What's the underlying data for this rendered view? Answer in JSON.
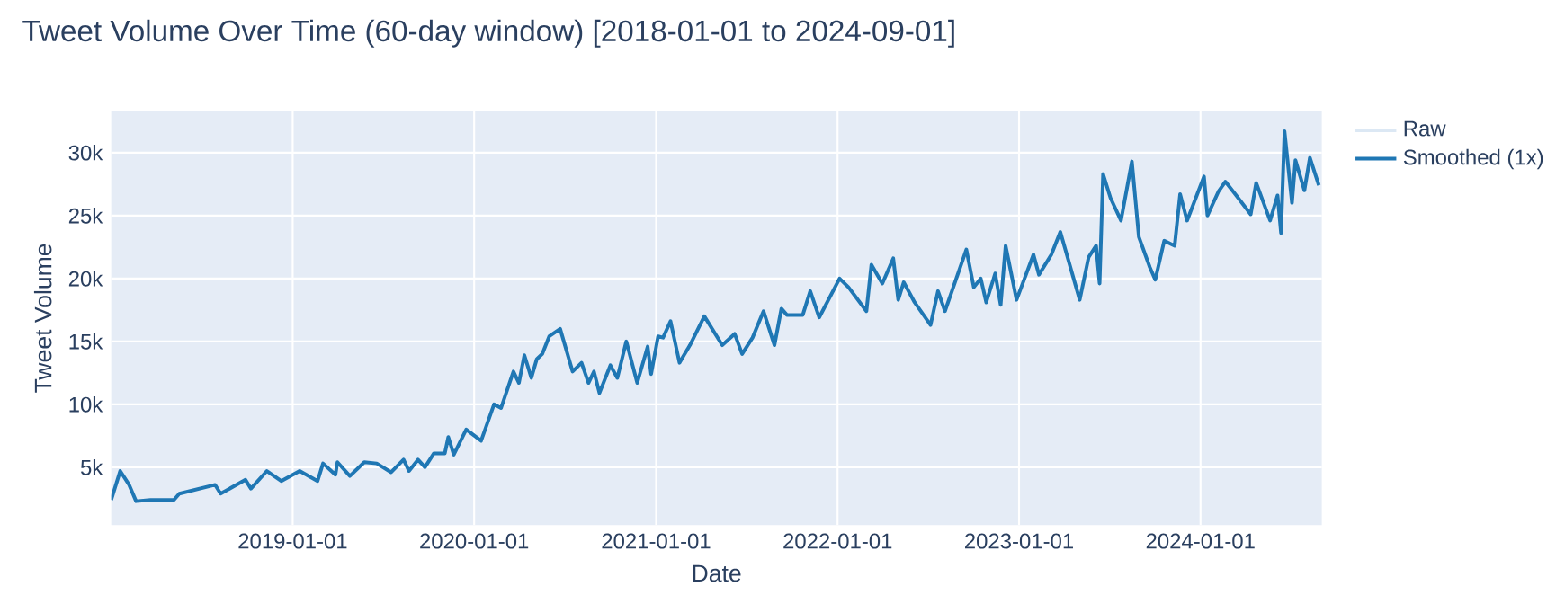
{
  "chart_data": {
    "type": "line",
    "title": "Tweet Volume Over Time (60-day window) [2018-01-01 to 2024-09-01]",
    "xlabel": "Date",
    "ylabel": "Tweet Volume",
    "xlim": [
      "2018-01-01",
      "2024-09-01"
    ],
    "xticks": [
      "2019-01-01",
      "2020-01-01",
      "2021-01-01",
      "2022-01-01",
      "2023-01-01",
      "2024-01-01"
    ],
    "ylim": [
      400,
      33300
    ],
    "yticks": [
      {
        "value": 5000,
        "label": "5k"
      },
      {
        "value": 10000,
        "label": "10k"
      },
      {
        "value": 15000,
        "label": "15k"
      },
      {
        "value": 20000,
        "label": "20k"
      },
      {
        "value": 25000,
        "label": "25k"
      },
      {
        "value": 30000,
        "label": "30k"
      }
    ],
    "grid": true,
    "legend": "top right",
    "line_style": "solid",
    "marker": "none",
    "series": [
      {
        "name": "Raw",
        "color": "#dce8f4"
      },
      {
        "name": "Smoothed (1x)",
        "color": "#1f77b4",
        "x": [
          "2018-01-01",
          "2018-01-19",
          "2018-02-06",
          "2018-02-20",
          "2018-03-21",
          "2018-05-07",
          "2018-05-18",
          "2018-07-29",
          "2018-08-09",
          "2018-09-28",
          "2018-10-09",
          "2018-11-10",
          "2018-12-09",
          "2019-01-15",
          "2019-02-20",
          "2019-03-03",
          "2019-03-28",
          "2019-04-01",
          "2019-04-26",
          "2019-05-25",
          "2019-06-19",
          "2019-07-18",
          "2019-08-12",
          "2019-08-23",
          "2019-09-10",
          "2019-09-24",
          "2019-10-12",
          "2019-11-03",
          "2019-11-10",
          "2019-11-21",
          "2019-12-16",
          "2020-01-15",
          "2020-02-10",
          "2020-02-24",
          "2020-03-20",
          "2020-03-31",
          "2020-04-11",
          "2020-04-25",
          "2020-05-06",
          "2020-05-17",
          "2020-05-31",
          "2020-06-22",
          "2020-07-17",
          "2020-08-04",
          "2020-08-18",
          "2020-08-29",
          "2020-09-09",
          "2020-10-01",
          "2020-10-15",
          "2020-11-02",
          "2020-11-24",
          "2020-12-15",
          "2020-12-22",
          "2021-01-05",
          "2021-01-15",
          "2021-01-30",
          "2021-02-17",
          "2021-03-10",
          "2021-04-08",
          "2021-05-14",
          "2021-06-08",
          "2021-06-23",
          "2021-07-14",
          "2021-08-05",
          "2021-08-27",
          "2021-09-10",
          "2021-09-21",
          "2021-10-23",
          "2021-11-07",
          "2021-11-25",
          "2022-01-05",
          "2022-01-23",
          "2022-02-28",
          "2022-03-10",
          "2022-04-01",
          "2022-04-23",
          "2022-05-03",
          "2022-05-14",
          "2022-06-05",
          "2022-07-07",
          "2022-07-22",
          "2022-08-05",
          "2022-09-17",
          "2022-10-02",
          "2022-10-16",
          "2022-10-27",
          "2022-11-14",
          "2022-11-25",
          "2022-12-05",
          "2022-12-27",
          "2023-01-30",
          "2023-02-10",
          "2023-03-07",
          "2023-03-25",
          "2023-05-03",
          "2023-05-21",
          "2023-06-05",
          "2023-06-12",
          "2023-06-19",
          "2023-07-04",
          "2023-07-25",
          "2023-08-16",
          "2023-08-30",
          "2023-09-21",
          "2023-10-02",
          "2023-10-20",
          "2023-11-10",
          "2023-11-21",
          "2023-12-05",
          "2024-01-08",
          "2024-01-15",
          "2024-02-06",
          "2024-02-20",
          "2024-03-13",
          "2024-04-11",
          "2024-04-22",
          "2024-05-20",
          "2024-06-04",
          "2024-06-11",
          "2024-06-18",
          "2024-07-03",
          "2024-07-10",
          "2024-07-28",
          "2024-08-08",
          "2024-08-26"
        ],
        "values": [
          2400,
          4700,
          3600,
          2300,
          2400,
          2400,
          2900,
          3600,
          2900,
          4000,
          3300,
          4700,
          3900,
          4700,
          3900,
          5300,
          4400,
          5400,
          4300,
          5400,
          5300,
          4600,
          5600,
          4700,
          5600,
          5000,
          6100,
          6100,
          7400,
          6000,
          8000,
          7100,
          10000,
          9700,
          12600,
          11700,
          13900,
          12100,
          13600,
          14000,
          15400,
          16000,
          12600,
          13300,
          11700,
          12600,
          10900,
          13100,
          12100,
          15000,
          11700,
          14600,
          12400,
          15400,
          15300,
          16600,
          13300,
          14700,
          17000,
          14700,
          15600,
          14000,
          15300,
          17400,
          14700,
          17600,
          17100,
          17100,
          19000,
          16900,
          20000,
          19300,
          17400,
          21100,
          19600,
          21600,
          18300,
          19700,
          18100,
          16300,
          19000,
          17400,
          22300,
          19300,
          20000,
          18100,
          20400,
          17900,
          22600,
          18300,
          21900,
          20300,
          21900,
          23700,
          18300,
          21700,
          22600,
          19600,
          28300,
          26400,
          24600,
          29300,
          23300,
          20900,
          19900,
          23000,
          22600,
          26700,
          24600,
          28100,
          25000,
          26900,
          27700,
          26600,
          25100,
          27600,
          24600,
          26600,
          23600,
          31700,
          26000,
          29400,
          27000,
          29600,
          27400
        ]
      }
    ]
  }
}
